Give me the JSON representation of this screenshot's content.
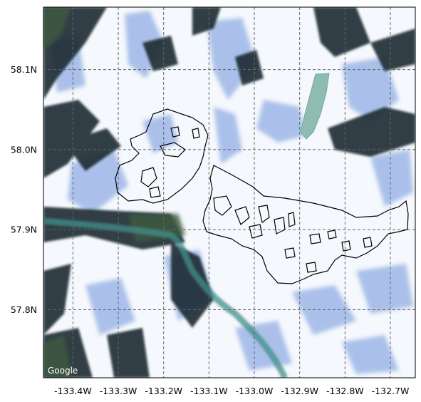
{
  "map": {
    "attribution": "Google",
    "lon_range": [
      -133.465,
      -132.645
    ],
    "lat_range": [
      57.715,
      58.178
    ],
    "x_ticks": [
      {
        "value": -133.4,
        "label": "-133.4W"
      },
      {
        "value": -133.3,
        "label": "-133.3W"
      },
      {
        "value": -133.2,
        "label": "-133.2W"
      },
      {
        "value": -133.1,
        "label": "-133.1W"
      },
      {
        "value": -133.0,
        "label": "-133.0W"
      },
      {
        "value": -132.9,
        "label": "-132.9W"
      },
      {
        "value": -132.8,
        "label": "-132.8W"
      },
      {
        "value": -132.7,
        "label": "-132.7W"
      }
    ],
    "y_ticks": [
      {
        "value": 58.1,
        "label": "58.1N"
      },
      {
        "value": 58.0,
        "label": "58.0N"
      },
      {
        "value": 57.9,
        "label": "57.9N"
      },
      {
        "value": 57.8,
        "label": "57.8N"
      }
    ],
    "gridlines": true,
    "grid_style": "dashed",
    "colors": {
      "ice": "#f7f9fc",
      "crevasse_blue": "#5b84d6",
      "rock_dark": "#1a2a30",
      "vegetation": "#3c5a3c",
      "water_teal": "#3f8f8a",
      "lake": "#8fbcb0",
      "outline": "#000000",
      "grid": "#666666"
    }
  }
}
